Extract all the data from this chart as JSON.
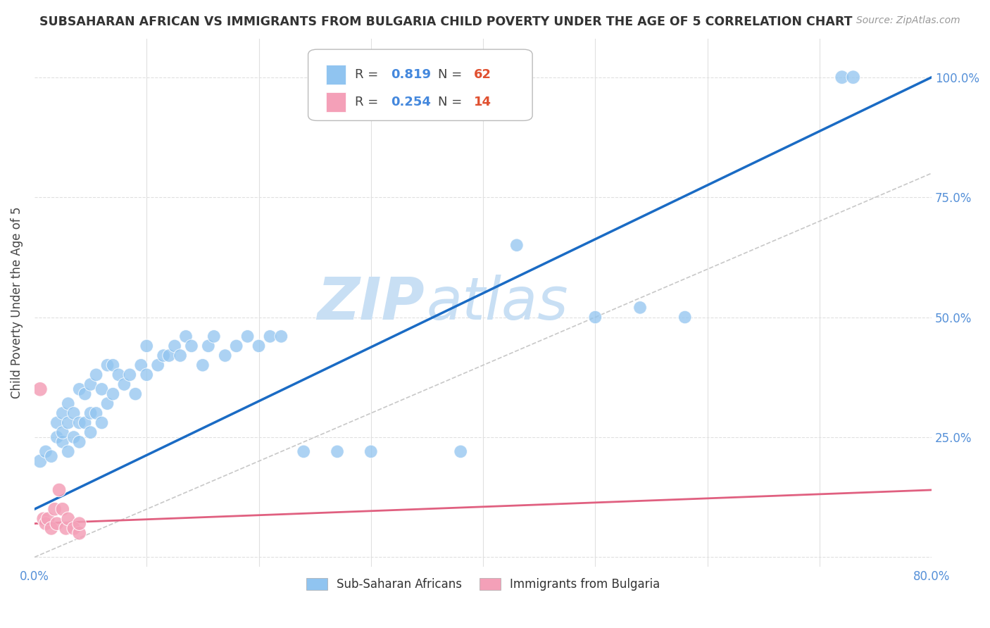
{
  "title": "SUBSAHARAN AFRICAN VS IMMIGRANTS FROM BULGARIA CHILD POVERTY UNDER THE AGE OF 5 CORRELATION CHART",
  "source": "Source: ZipAtlas.com",
  "ylabel": "Child Poverty Under the Age of 5",
  "xlim": [
    0.0,
    0.8
  ],
  "ylim": [
    -0.02,
    1.08
  ],
  "xticks": [
    0.0,
    0.1,
    0.2,
    0.3,
    0.4,
    0.5,
    0.6,
    0.7,
    0.8
  ],
  "xticklabels": [
    "0.0%",
    "",
    "",
    "",
    "",
    "",
    "",
    "",
    "80.0%"
  ],
  "yticks": [
    0.0,
    0.25,
    0.5,
    0.75,
    1.0
  ],
  "yticklabels_right": [
    "",
    "25.0%",
    "50.0%",
    "75.0%",
    "100.0%"
  ],
  "blue_scatter_x": [
    0.005,
    0.01,
    0.015,
    0.02,
    0.02,
    0.025,
    0.025,
    0.025,
    0.03,
    0.03,
    0.03,
    0.035,
    0.035,
    0.04,
    0.04,
    0.04,
    0.045,
    0.045,
    0.05,
    0.05,
    0.05,
    0.055,
    0.055,
    0.06,
    0.06,
    0.065,
    0.065,
    0.07,
    0.07,
    0.075,
    0.08,
    0.085,
    0.09,
    0.095,
    0.1,
    0.1,
    0.11,
    0.115,
    0.12,
    0.125,
    0.13,
    0.135,
    0.14,
    0.15,
    0.155,
    0.16,
    0.17,
    0.18,
    0.19,
    0.2,
    0.21,
    0.22,
    0.24,
    0.27,
    0.3,
    0.38,
    0.43,
    0.5,
    0.54,
    0.58,
    0.72,
    0.73
  ],
  "blue_scatter_y": [
    0.2,
    0.22,
    0.21,
    0.25,
    0.28,
    0.24,
    0.26,
    0.3,
    0.22,
    0.28,
    0.32,
    0.25,
    0.3,
    0.24,
    0.28,
    0.35,
    0.28,
    0.34,
    0.26,
    0.3,
    0.36,
    0.3,
    0.38,
    0.28,
    0.35,
    0.32,
    0.4,
    0.34,
    0.4,
    0.38,
    0.36,
    0.38,
    0.34,
    0.4,
    0.38,
    0.44,
    0.4,
    0.42,
    0.42,
    0.44,
    0.42,
    0.46,
    0.44,
    0.4,
    0.44,
    0.46,
    0.42,
    0.44,
    0.46,
    0.44,
    0.46,
    0.46,
    0.22,
    0.22,
    0.22,
    0.22,
    0.65,
    0.5,
    0.52,
    0.5,
    1.0,
    1.0
  ],
  "blue_scatter_sizes": [
    200,
    180,
    180,
    180,
    180,
    180,
    180,
    180,
    180,
    180,
    180,
    180,
    180,
    180,
    180,
    180,
    180,
    180,
    180,
    180,
    180,
    180,
    180,
    180,
    180,
    180,
    180,
    180,
    180,
    180,
    180,
    180,
    180,
    180,
    180,
    180,
    180,
    180,
    180,
    180,
    180,
    180,
    180,
    180,
    180,
    180,
    180,
    180,
    180,
    180,
    180,
    180,
    180,
    180,
    180,
    180,
    180,
    180,
    180,
    180,
    200,
    200
  ],
  "pink_scatter_x": [
    0.005,
    0.008,
    0.01,
    0.012,
    0.015,
    0.018,
    0.02,
    0.022,
    0.025,
    0.028,
    0.03,
    0.035,
    0.04,
    0.04
  ],
  "pink_scatter_y": [
    0.35,
    0.08,
    0.07,
    0.08,
    0.06,
    0.1,
    0.07,
    0.14,
    0.1,
    0.06,
    0.08,
    0.06,
    0.05,
    0.07
  ],
  "pink_scatter_sizes": [
    220,
    200,
    200,
    200,
    200,
    200,
    200,
    200,
    200,
    200,
    200,
    200,
    200,
    200
  ],
  "blue_line_x": [
    0.0,
    0.8
  ],
  "blue_line_y": [
    0.1,
    1.0
  ],
  "pink_line_x": [
    0.0,
    0.8
  ],
  "pink_line_y": [
    0.07,
    0.14
  ],
  "diag_line_x": [
    0.0,
    0.8
  ],
  "diag_line_y": [
    0.0,
    0.8
  ],
  "blue_color": "#90c4f0",
  "pink_color": "#f4a0b8",
  "blue_line_color": "#1a6bc4",
  "pink_line_color": "#e06080",
  "diag_line_color": "#c8c8c8",
  "watermark_zip": "ZIP",
  "watermark_atlas": "atlas",
  "watermark_color": "#c8dff4",
  "background_color": "#ffffff",
  "grid_color": "#e0e0e0",
  "legend_r1_val": "0.819",
  "legend_n1_val": "62",
  "legend_r2_val": "0.254",
  "legend_n2_val": "14",
  "label_blue": "Sub-Saharan Africans",
  "label_pink": "Immigrants from Bulgaria"
}
